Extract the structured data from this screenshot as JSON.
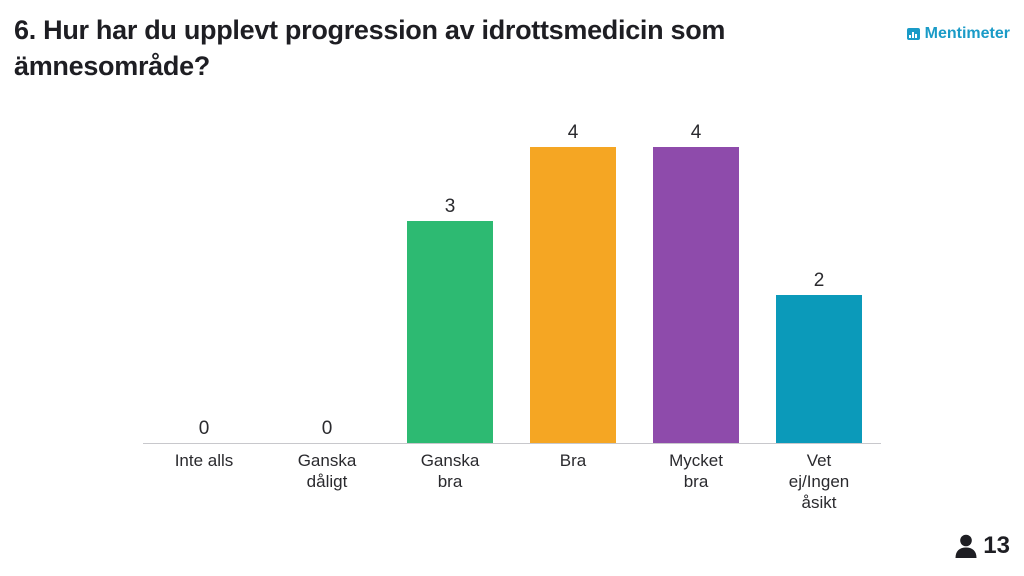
{
  "header": {
    "title": "6. Hur har du upplevt progression av idrottsmedicin som ämnesområde?",
    "brand": "Mentimeter"
  },
  "footer": {
    "participant_count": "13",
    "participant_icon": "person-icon"
  },
  "colors": {
    "text": "#2a2a2e",
    "axis": "#c8c8cc",
    "brand": "#1a9bc7"
  },
  "chart_data": {
    "type": "bar",
    "title": "6. Hur har du upplevt progression av idrottsmedicin som ämnesområde?",
    "categories": [
      [
        "Inte alls"
      ],
      [
        "Ganska",
        "dåligt"
      ],
      [
        "Ganska",
        "bra"
      ],
      [
        "Bra"
      ],
      [
        "Mycket",
        "bra"
      ],
      [
        "Vet",
        "ej/Ingen",
        "åsikt"
      ]
    ],
    "category_names": [
      "Inte alls",
      "Ganska dåligt",
      "Ganska bra",
      "Bra",
      "Mycket bra",
      "Vet ej/Ingen åsikt"
    ],
    "values": [
      0,
      0,
      3,
      4,
      4,
      2
    ],
    "colors": [
      "#c7c7c7",
      "#c7c7c7",
      "#2dba72",
      "#f5a623",
      "#8e4bab",
      "#0b9aba"
    ],
    "ylim": [
      0,
      4
    ],
    "xlabel": "",
    "ylabel": "",
    "grid": false
  }
}
